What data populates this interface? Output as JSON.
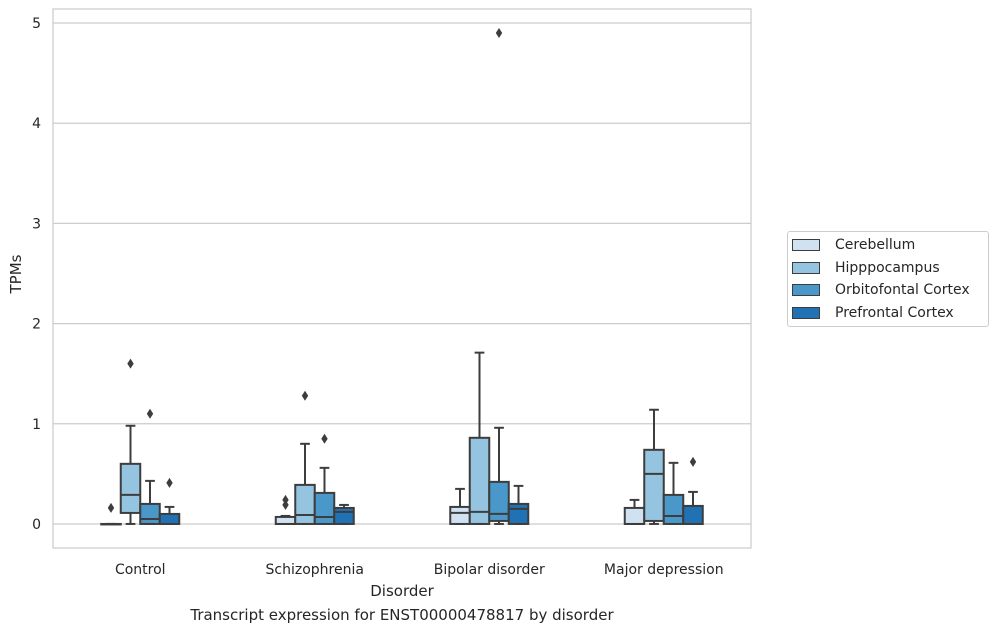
{
  "caption": "Transcript expression for ENST00000478817 by disorder",
  "chart_data": {
    "type": "box",
    "xlabel": "Disorder",
    "ylabel": "TPMs",
    "ylim": [
      -0.24,
      5.14
    ],
    "yticks": [
      0,
      1,
      2,
      3,
      4,
      5
    ],
    "grid": true,
    "legend_position": "right",
    "categories": [
      "Control",
      "Schizophrenia",
      "Bipolar disorder",
      "Major depression"
    ],
    "series": [
      {
        "name": "Cerebellum",
        "color": "#d0e1f2",
        "boxes": [
          {
            "whisker_low": 0.0,
            "q1": 0.0,
            "median": 0.0,
            "q3": 0.0,
            "whisker_high": 0.0,
            "outliers": [
              0.16
            ]
          },
          {
            "whisker_low": 0.0,
            "q1": 0.0,
            "median": 0.0,
            "q3": 0.07,
            "whisker_high": 0.08,
            "outliers": [
              0.19,
              0.24
            ]
          },
          {
            "whisker_low": 0.0,
            "q1": 0.0,
            "median": 0.11,
            "q3": 0.17,
            "whisker_high": 0.35,
            "outliers": []
          },
          {
            "whisker_low": 0.0,
            "q1": 0.0,
            "median": 0.0,
            "q3": 0.16,
            "whisker_high": 0.24,
            "outliers": []
          }
        ]
      },
      {
        "name": "Hipppocampus",
        "color": "#94c4df",
        "boxes": [
          {
            "whisker_low": 0.0,
            "q1": 0.11,
            "median": 0.29,
            "q3": 0.6,
            "whisker_high": 0.98,
            "outliers": [
              1.6
            ]
          },
          {
            "whisker_low": 0.0,
            "q1": 0.0,
            "median": 0.09,
            "q3": 0.39,
            "whisker_high": 0.8,
            "outliers": [
              1.28
            ]
          },
          {
            "whisker_low": 0.0,
            "q1": 0.0,
            "median": 0.12,
            "q3": 0.86,
            "whisker_high": 1.71,
            "outliers": []
          },
          {
            "whisker_low": 0.0,
            "q1": 0.03,
            "median": 0.5,
            "q3": 0.74,
            "whisker_high": 1.14,
            "outliers": []
          }
        ]
      },
      {
        "name": "Orbitofontal Cortex",
        "color": "#4a98c9",
        "boxes": [
          {
            "whisker_low": 0.0,
            "q1": 0.0,
            "median": 0.05,
            "q3": 0.2,
            "whisker_high": 0.43,
            "outliers": [
              1.1
            ]
          },
          {
            "whisker_low": 0.0,
            "q1": 0.0,
            "median": 0.07,
            "q3": 0.31,
            "whisker_high": 0.56,
            "outliers": [
              0.85
            ]
          },
          {
            "whisker_low": 0.0,
            "q1": 0.03,
            "median": 0.1,
            "q3": 0.42,
            "whisker_high": 0.96,
            "outliers": [
              4.9
            ]
          },
          {
            "whisker_low": 0.0,
            "q1": 0.0,
            "median": 0.08,
            "q3": 0.29,
            "whisker_high": 0.61,
            "outliers": []
          }
        ]
      },
      {
        "name": "Prefrontal Cortex",
        "color": "#2171b5",
        "boxes": [
          {
            "whisker_low": 0.0,
            "q1": 0.0,
            "median": 0.0,
            "q3": 0.1,
            "whisker_high": 0.17,
            "outliers": [
              0.41
            ]
          },
          {
            "whisker_low": 0.0,
            "q1": 0.0,
            "median": 0.12,
            "q3": 0.16,
            "whisker_high": 0.19,
            "outliers": []
          },
          {
            "whisker_low": 0.0,
            "q1": 0.0,
            "median": 0.15,
            "q3": 0.2,
            "whisker_high": 0.38,
            "outliers": []
          },
          {
            "whisker_low": 0.0,
            "q1": 0.0,
            "median": 0.0,
            "q3": 0.18,
            "whisker_high": 0.32,
            "outliers": [
              0.62
            ]
          }
        ]
      }
    ]
  }
}
